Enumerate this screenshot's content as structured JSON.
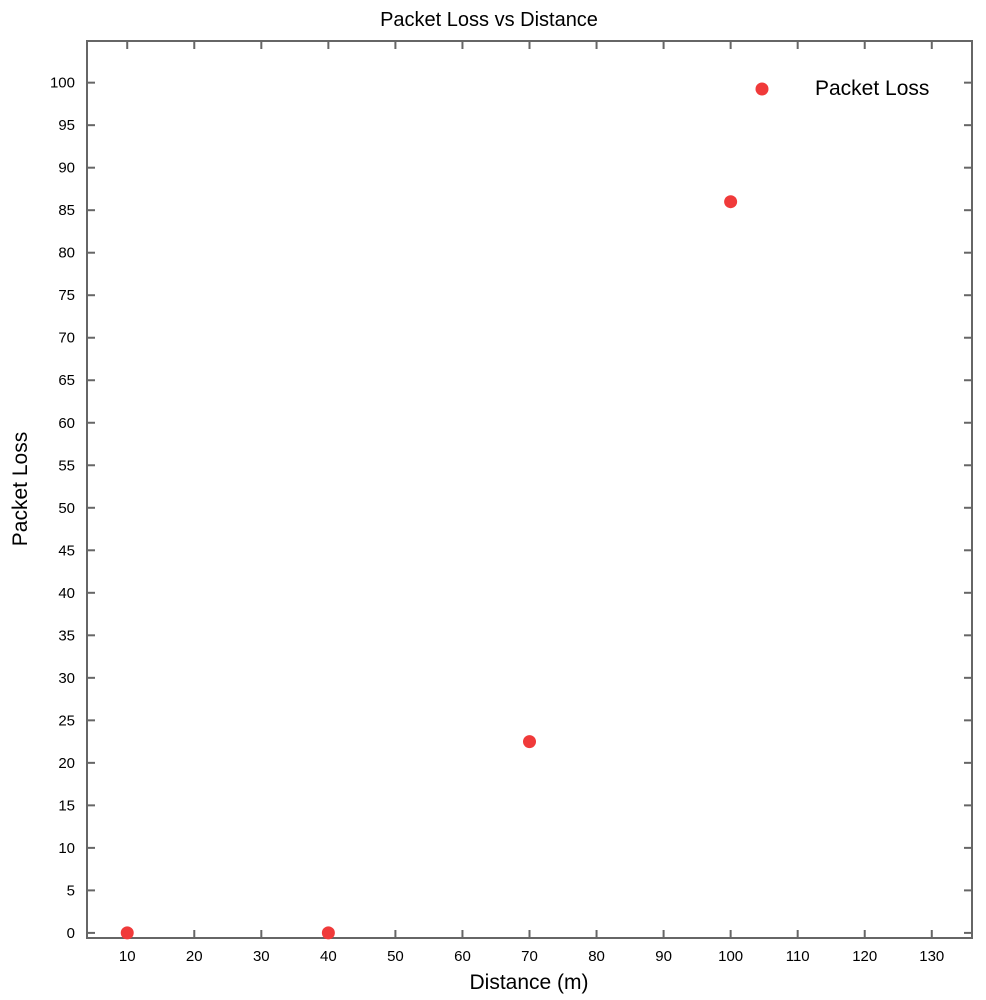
{
  "chart_data": {
    "type": "scatter",
    "title": "Packet Loss vs Distance",
    "xlabel": "Distance (m)",
    "ylabel": "Packet Loss",
    "xlim": [
      4,
      136
    ],
    "ylim": [
      -0.6,
      104.9
    ],
    "x_ticks": [
      10,
      20,
      30,
      40,
      50,
      60,
      70,
      80,
      90,
      100,
      110,
      120,
      130
    ],
    "y_ticks": [
      0,
      5,
      10,
      15,
      20,
      25,
      30,
      35,
      40,
      45,
      50,
      55,
      60,
      65,
      70,
      75,
      80,
      85,
      90,
      95,
      100
    ],
    "grid": false,
    "legend": {
      "position": "top-right"
    },
    "series": [
      {
        "name": "Packet Loss",
        "color": "#f03a3a",
        "marker": "circle",
        "x": [
          10,
          40,
          70,
          100
        ],
        "y": [
          0,
          0,
          22.5,
          86
        ]
      }
    ]
  }
}
